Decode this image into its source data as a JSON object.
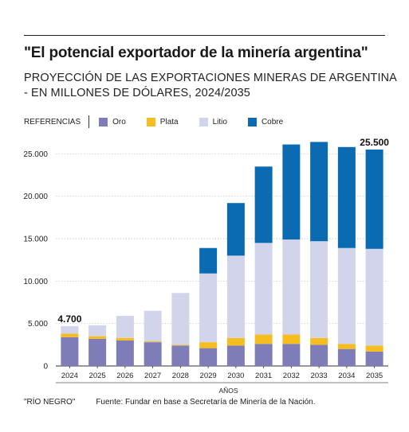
{
  "header": {
    "title": "\"El potencial exportador de la minería argentina\"",
    "subtitle_line1": "PROYECCIÓN DE LAS EXPORTACIONES MINERAS DE ARGENTINA",
    "subtitle_line2": "- EN MILLONES DE DÓLARES, 2024/2035"
  },
  "legend": {
    "label": "REFERENCIAS",
    "items": [
      {
        "name": "Oro",
        "color": "#7e7db8"
      },
      {
        "name": "Plata",
        "color": "#f5bd1f"
      },
      {
        "name": "Litio",
        "color": "#d1d4ea"
      },
      {
        "name": "Cobre",
        "color": "#0a6bb3"
      }
    ]
  },
  "chart_data": {
    "type": "bar",
    "stacked": true,
    "categories": [
      "2024",
      "2025",
      "2026",
      "2027",
      "2028",
      "2029",
      "2030",
      "2031",
      "2032",
      "2033",
      "2034",
      "2035"
    ],
    "series": [
      {
        "name": "Oro",
        "color": "#7e7db8",
        "values": [
          3400,
          3200,
          3000,
          2800,
          2400,
          2100,
          2400,
          2600,
          2600,
          2500,
          2000,
          1700
        ]
      },
      {
        "name": "Plata",
        "color": "#f5bd1f",
        "values": [
          400,
          300,
          300,
          100,
          100,
          700,
          900,
          1100,
          1100,
          800,
          600,
          700
        ]
      },
      {
        "name": "Litio",
        "color": "#d1d4ea",
        "values": [
          900,
          1300,
          2600,
          3600,
          6100,
          8100,
          9700,
          10800,
          11200,
          11400,
          11300,
          11400
        ]
      },
      {
        "name": "Cobre",
        "color": "#0a6bb3",
        "values": [
          0,
          0,
          0,
          0,
          0,
          3000,
          6200,
          9000,
          11200,
          11700,
          11900,
          11700
        ]
      }
    ],
    "annotations": [
      {
        "category": "2024",
        "text": "4.700"
      },
      {
        "category": "2035",
        "text": "25.500"
      }
    ],
    "ylim": [
      0,
      27000
    ],
    "yticks": [
      0,
      5000,
      10000,
      15000,
      20000,
      25000
    ],
    "ytick_labels": [
      "0",
      "5.000",
      "10.000",
      "15.000",
      "20.000",
      "25.000"
    ],
    "xlabel": "AÑOS",
    "ylabel": "",
    "grid": true
  },
  "footer": {
    "credit": "\"RÍO NEGRO\"",
    "source": "Fuente: Fundar en base a Secretaría de Minería de la Nación."
  }
}
